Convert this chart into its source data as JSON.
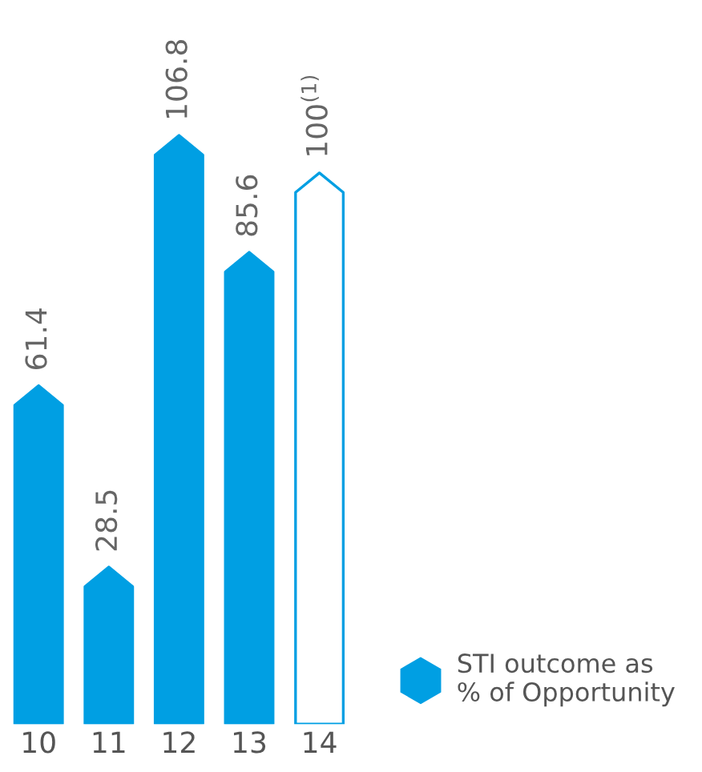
{
  "chart_data": {
    "type": "bar",
    "categories": [
      "10",
      "11",
      "12",
      "13",
      "14"
    ],
    "series": [
      {
        "name": "STI outcome as\n% of Opportunity",
        "color": "#009fe3",
        "values": [
          61.4,
          28.5,
          106.8,
          85.6,
          100
        ],
        "colors": [
          "#009fe3",
          "#009fe3",
          "#009fe3",
          "#009fe3",
          "#ffffff"
        ],
        "value_labels": [
          "61.4",
          "28.5",
          "106.8",
          "85.6",
          "100$^{(1)}$"
        ]
      }
    ],
    "legend": "bottom right",
    "grid": false
  }
}
